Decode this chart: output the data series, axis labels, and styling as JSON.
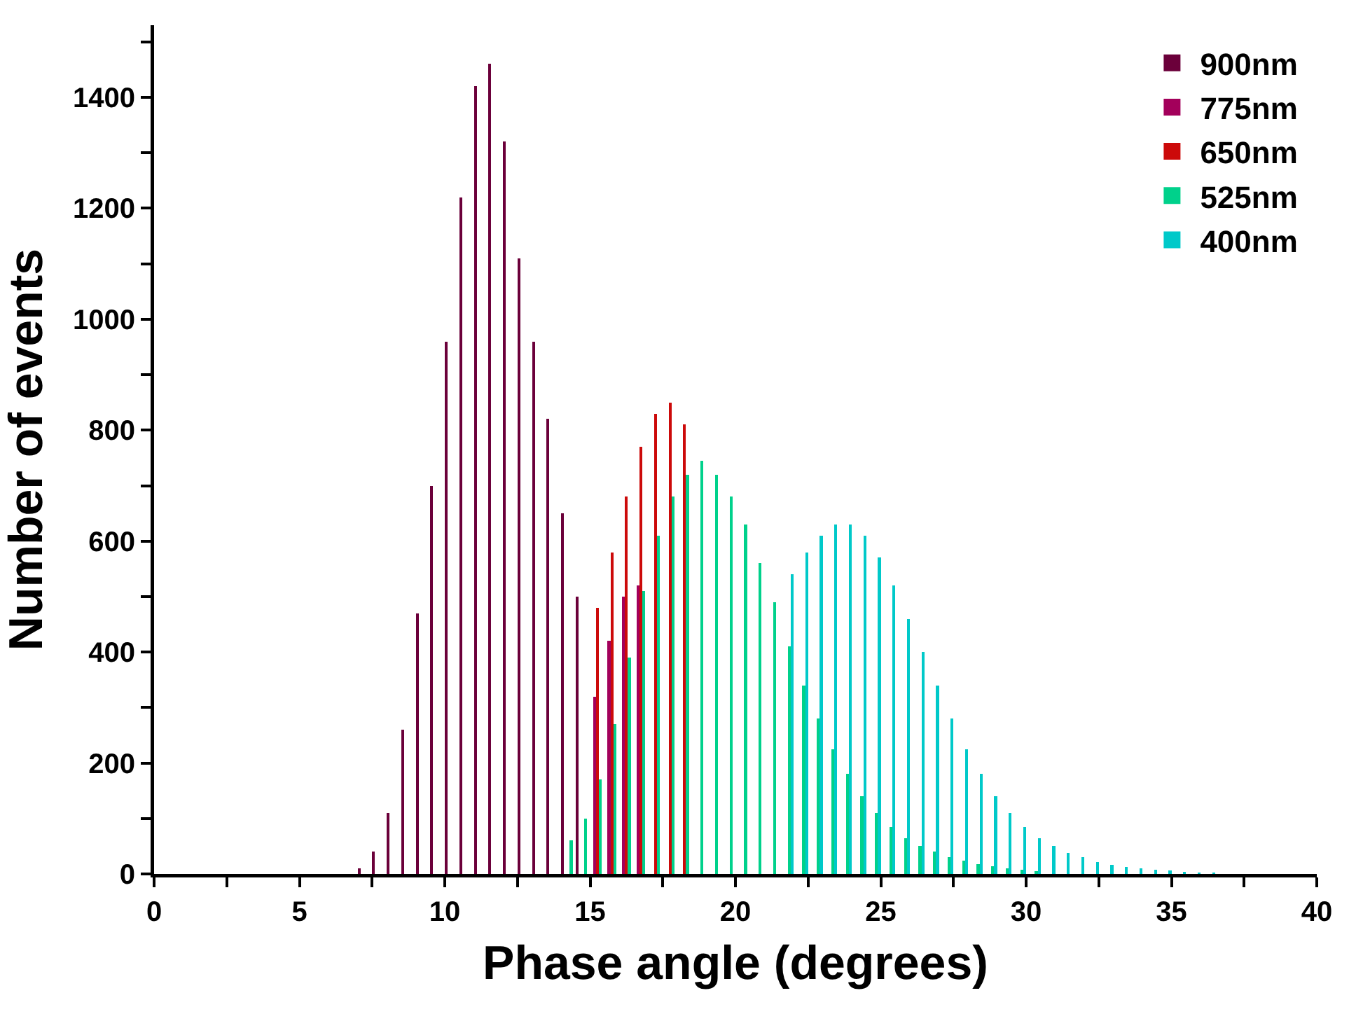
{
  "chart_data": {
    "type": "histogram",
    "xlabel": "Phase angle (degrees)",
    "ylabel": "Number of events",
    "bins": [
      7,
      7.5,
      8,
      8.5,
      9,
      9.5,
      10,
      10.5,
      11,
      11.5,
      12,
      12.5,
      13,
      13.5,
      14,
      14.5,
      15,
      15.5,
      16,
      16.5,
      17,
      17.5,
      18,
      18.5,
      19,
      19.5,
      20,
      20.5,
      21,
      21.5,
      22,
      22.5,
      23,
      23.5,
      24,
      24.5,
      25,
      25.5,
      26,
      26.5,
      27,
      27.5,
      28,
      28.5,
      29,
      29.5,
      30,
      30.5,
      31,
      31.5,
      32,
      32.5,
      33,
      33.5,
      34,
      34.5,
      35,
      35.5,
      36,
      36.5,
      37
    ],
    "series": [
      {
        "name": "900nm",
        "color": "#6b003a",
        "values": [
          10,
          40,
          110,
          260,
          470,
          700,
          960,
          1220,
          1420,
          1460,
          1320,
          1110,
          960,
          820,
          650,
          500,
          null,
          null,
          null,
          null,
          null,
          null,
          null,
          null,
          null,
          null,
          null,
          null,
          null,
          null,
          null,
          null,
          null,
          null,
          null,
          null,
          null,
          null,
          null,
          null,
          null,
          null,
          null,
          null,
          null,
          null,
          null,
          null,
          null,
          null,
          null,
          null,
          null,
          null,
          null,
          null,
          null,
          null,
          null,
          null
        ]
      },
      {
        "name": "775nm",
        "color": "#a3005b",
        "values": [
          0,
          0,
          0,
          0,
          0,
          0,
          0,
          0,
          0,
          0,
          0,
          0,
          0,
          0,
          0,
          0,
          320,
          420,
          500,
          520,
          null,
          null,
          null,
          null,
          null,
          null,
          null,
          null,
          null,
          null,
          null,
          null,
          null,
          null,
          null,
          null,
          null,
          null,
          null,
          null,
          null,
          null,
          null,
          null,
          null,
          null,
          null,
          null,
          null,
          null,
          null,
          null,
          null,
          null,
          null,
          null,
          null,
          null,
          null,
          null
        ]
      },
      {
        "name": "650nm",
        "color": "#cc0a0a",
        "values": [
          0,
          0,
          0,
          0,
          0,
          0,
          0,
          0,
          0,
          0,
          0,
          0,
          0,
          0,
          0,
          0,
          480,
          580,
          680,
          770,
          830,
          850,
          810,
          null,
          null,
          null,
          null,
          null,
          null,
          null,
          null,
          null,
          null,
          null,
          null,
          null,
          null,
          null,
          null,
          null,
          null,
          null,
          null,
          null,
          null,
          null,
          null,
          null,
          null,
          null,
          null,
          null,
          null,
          null,
          null,
          null,
          null,
          null,
          null,
          null
        ]
      },
      {
        "name": "525nm",
        "color": "#00d18b",
        "values": [
          0,
          0,
          0,
          0,
          0,
          0,
          0,
          0,
          0,
          0,
          0,
          0,
          0,
          0,
          60,
          100,
          170,
          270,
          390,
          510,
          610,
          680,
          720,
          745,
          720,
          680,
          630,
          560,
          490,
          410,
          340,
          280,
          225,
          180,
          140,
          110,
          85,
          65,
          50,
          40,
          30,
          24,
          18,
          14,
          10,
          7,
          5,
          0,
          0,
          0,
          0,
          0,
          0,
          0,
          0,
          0,
          0,
          0,
          0,
          0
        ]
      },
      {
        "name": "400nm",
        "color": "#00c9c9",
        "values": [
          0,
          0,
          0,
          0,
          0,
          0,
          0,
          0,
          0,
          0,
          0,
          0,
          0,
          0,
          0,
          0,
          null,
          null,
          null,
          null,
          null,
          null,
          null,
          null,
          null,
          null,
          null,
          null,
          null,
          540,
          580,
          610,
          630,
          630,
          610,
          570,
          520,
          460,
          400,
          340,
          280,
          225,
          180,
          140,
          110,
          85,
          65,
          50,
          38,
          30,
          22,
          17,
          13,
          10,
          8,
          6,
          4,
          3,
          2,
          0
        ]
      }
    ],
    "xlim": [
      0,
      40
    ],
    "xticks": [
      0,
      {
        "value": 2.5,
        "label": null
      },
      5,
      {
        "value": 7.5,
        "label": null
      },
      10,
      {
        "value": 12.5,
        "label": null
      },
      15,
      {
        "value": 17.5,
        "label": null
      },
      20,
      {
        "value": 22.5,
        "label": null
      },
      25,
      {
        "value": 27.5,
        "label": null
      },
      30,
      {
        "value": 32.5,
        "label": null
      },
      35,
      {
        "value": 37.5,
        "label": null
      },
      40
    ],
    "ylim": [
      0,
      1530
    ],
    "yticks": [
      0,
      {
        "value": 100,
        "label": null
      },
      200,
      {
        "value": 300,
        "label": null
      },
      400,
      {
        "value": 500,
        "label": null
      },
      600,
      {
        "value": 700,
        "label": null
      },
      800,
      {
        "value": 900,
        "label": null
      },
      1000,
      {
        "value": 1100,
        "label": null
      },
      1200,
      {
        "value": 1300,
        "label": null
      },
      1400,
      {
        "value": 1500,
        "label": null
      }
    ],
    "grid": false,
    "legend": "top right"
  }
}
